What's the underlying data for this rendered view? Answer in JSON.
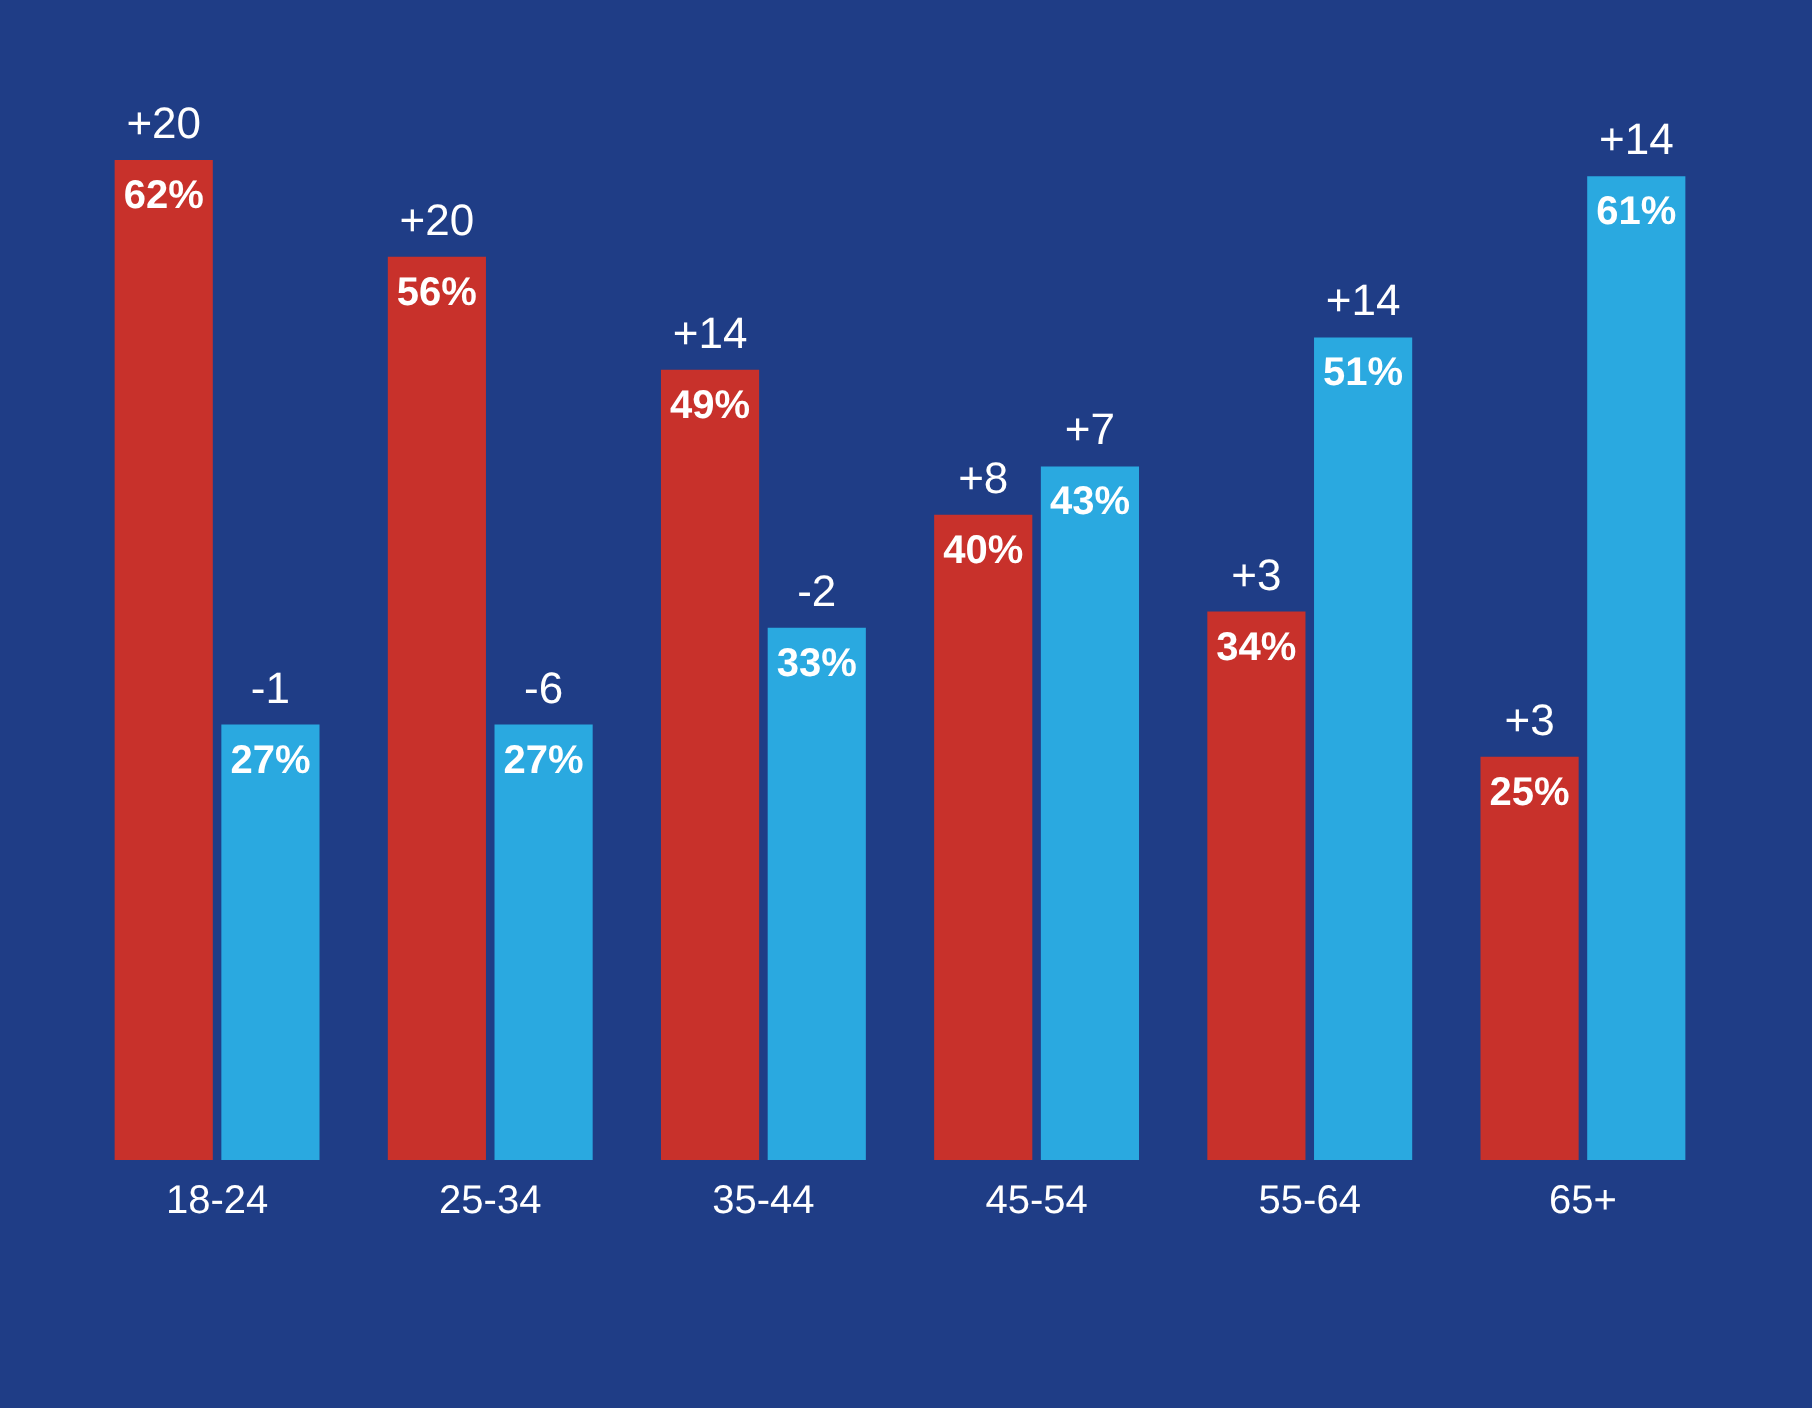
{
  "chart_data": {
    "type": "bar",
    "categories": [
      "18-24",
      "25-34",
      "35-44",
      "45-54",
      "55-64",
      "65+"
    ],
    "series": [
      {
        "color": "#c8312b",
        "values": [
          62,
          56,
          49,
          40,
          34,
          25
        ],
        "value_labels": [
          "62%",
          "56%",
          "49%",
          "40%",
          "34%",
          "25%"
        ]
      },
      {
        "color": "#2aa9e0",
        "values": [
          27,
          27,
          33,
          43,
          51,
          61
        ],
        "value_labels": [
          "27%",
          "27%",
          "33%",
          "43%",
          "51%",
          "61%"
        ]
      }
    ],
    "annotations": [
      {
        "text": "+20",
        "x": "18-24",
        "y": 62
      },
      {
        "text": "-1",
        "x": "18-24",
        "y": 27
      },
      {
        "text": "+20",
        "x": "25-34",
        "y": 56
      },
      {
        "text": "-6",
        "x": "25-34",
        "y": 27
      },
      {
        "text": "+14",
        "x": "35-44",
        "y": 49
      },
      {
        "text": "-2",
        "x": "35-44",
        "y": 33
      },
      {
        "text": "+8",
        "x": "45-54",
        "y": 40
      },
      {
        "text": "+7",
        "x": "45-54",
        "y": 43
      },
      {
        "text": "+3",
        "x": "55-64",
        "y": 34
      },
      {
        "text": "+14",
        "x": "55-64",
        "y": 51
      },
      {
        "text": "+3",
        "x": "65+",
        "y": 25
      },
      {
        "text": "+14",
        "x": "65+",
        "y": 61
      }
    ],
    "data_labels": false
  }
}
